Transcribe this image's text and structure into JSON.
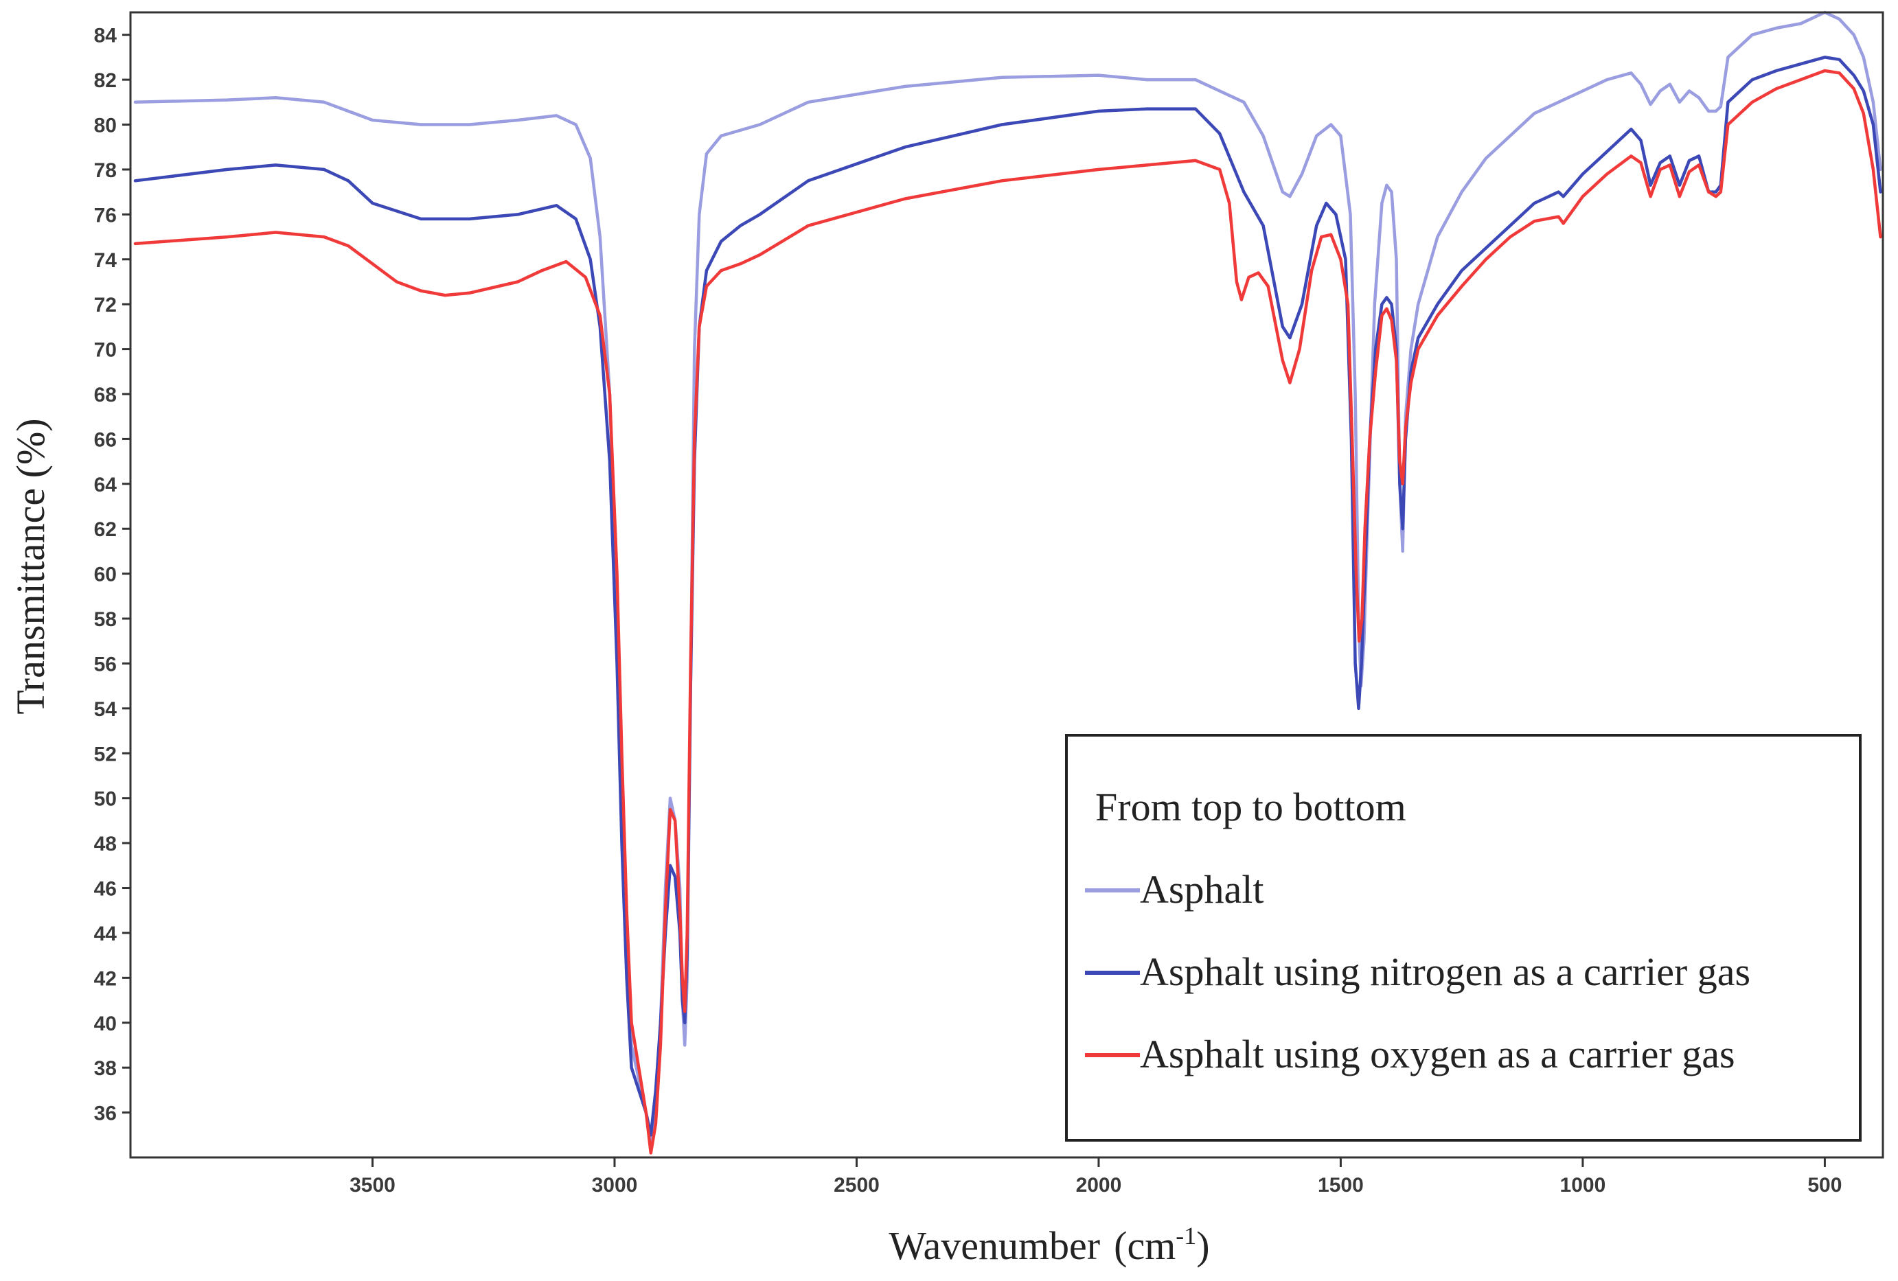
{
  "chart_data": {
    "type": "line",
    "xlabel_main": "Wavenumber",
    "xlabel_unit_open": "(cm",
    "xlabel_unit_sup": "-1",
    "xlabel_unit_close": ")",
    "ylabel": "Transmittance  (%)",
    "xlim": [
      4000,
      380
    ],
    "ylim": [
      34,
      85
    ],
    "x_ticks": [
      3500,
      3000,
      2500,
      2000,
      1500,
      1000,
      500
    ],
    "y_ticks": [
      36,
      38,
      40,
      42,
      44,
      46,
      48,
      50,
      52,
      54,
      56,
      58,
      60,
      62,
      64,
      66,
      68,
      70,
      72,
      74,
      76,
      78,
      80,
      82,
      84
    ],
    "legend": {
      "title": "From top to bottom",
      "position": "bottom-right",
      "entries": [
        "Asphalt",
        "Asphalt using nitrogen as a carrier gas",
        "Asphalt using oxygen as a carrier gas"
      ]
    },
    "series": [
      {
        "name": "Asphalt",
        "color": "#9a9de0",
        "points": [
          [
            3990,
            81
          ],
          [
            3800,
            81.1
          ],
          [
            3700,
            81.2
          ],
          [
            3600,
            81
          ],
          [
            3500,
            80.2
          ],
          [
            3400,
            80
          ],
          [
            3300,
            80
          ],
          [
            3200,
            80.2
          ],
          [
            3120,
            80.4
          ],
          [
            3080,
            80
          ],
          [
            3050,
            78.5
          ],
          [
            3030,
            75
          ],
          [
            3010,
            68
          ],
          [
            2995,
            58
          ],
          [
            2985,
            50
          ],
          [
            2975,
            43
          ],
          [
            2965,
            39
          ],
          [
            2950,
            37.5
          ],
          [
            2935,
            36
          ],
          [
            2925,
            34.5
          ],
          [
            2915,
            36.5
          ],
          [
            2905,
            40
          ],
          [
            2895,
            46
          ],
          [
            2885,
            50
          ],
          [
            2875,
            49
          ],
          [
            2865,
            46
          ],
          [
            2860,
            41
          ],
          [
            2855,
            39
          ],
          [
            2850,
            42
          ],
          [
            2843,
            55
          ],
          [
            2835,
            70
          ],
          [
            2825,
            76
          ],
          [
            2810,
            78.7
          ],
          [
            2780,
            79.5
          ],
          [
            2700,
            80
          ],
          [
            2600,
            81
          ],
          [
            2400,
            81.7
          ],
          [
            2200,
            82.1
          ],
          [
            2000,
            82.2
          ],
          [
            1900,
            82
          ],
          [
            1800,
            82
          ],
          [
            1750,
            81.5
          ],
          [
            1700,
            81
          ],
          [
            1660,
            79.5
          ],
          [
            1620,
            77
          ],
          [
            1605,
            76.8
          ],
          [
            1580,
            77.8
          ],
          [
            1550,
            79.5
          ],
          [
            1520,
            80
          ],
          [
            1500,
            79.5
          ],
          [
            1480,
            76
          ],
          [
            1470,
            68
          ],
          [
            1463,
            58
          ],
          [
            1458,
            55
          ],
          [
            1452,
            57
          ],
          [
            1445,
            62
          ],
          [
            1430,
            72
          ],
          [
            1415,
            76.5
          ],
          [
            1405,
            77.3
          ],
          [
            1395,
            77
          ],
          [
            1385,
            74
          ],
          [
            1378,
            64
          ],
          [
            1372,
            61
          ],
          [
            1366,
            67
          ],
          [
            1355,
            70
          ],
          [
            1340,
            72
          ],
          [
            1300,
            75
          ],
          [
            1250,
            77
          ],
          [
            1200,
            78.5
          ],
          [
            1150,
            79.5
          ],
          [
            1100,
            80.5
          ],
          [
            1050,
            81
          ],
          [
            1000,
            81.5
          ],
          [
            950,
            82
          ],
          [
            900,
            82.3
          ],
          [
            880,
            81.8
          ],
          [
            860,
            80.9
          ],
          [
            840,
            81.5
          ],
          [
            820,
            81.8
          ],
          [
            800,
            81
          ],
          [
            780,
            81.5
          ],
          [
            760,
            81.2
          ],
          [
            740,
            80.6
          ],
          [
            725,
            80.6
          ],
          [
            715,
            80.8
          ],
          [
            700,
            83
          ],
          [
            650,
            84
          ],
          [
            600,
            84.3
          ],
          [
            550,
            84.5
          ],
          [
            500,
            85
          ],
          [
            470,
            84.7
          ],
          [
            440,
            84
          ],
          [
            420,
            83
          ],
          [
            400,
            81
          ],
          [
            385,
            78
          ]
        ]
      },
      {
        "name": "Asphalt using nitrogen as a carrier gas",
        "color": "#3b48b6",
        "points": [
          [
            3990,
            77.5
          ],
          [
            3800,
            78
          ],
          [
            3700,
            78.2
          ],
          [
            3600,
            78
          ],
          [
            3550,
            77.5
          ],
          [
            3500,
            76.5
          ],
          [
            3400,
            75.8
          ],
          [
            3300,
            75.8
          ],
          [
            3200,
            76
          ],
          [
            3120,
            76.4
          ],
          [
            3080,
            75.8
          ],
          [
            3050,
            74
          ],
          [
            3030,
            71
          ],
          [
            3010,
            65
          ],
          [
            2995,
            56
          ],
          [
            2985,
            48
          ],
          [
            2975,
            42
          ],
          [
            2965,
            38
          ],
          [
            2950,
            37
          ],
          [
            2935,
            36
          ],
          [
            2925,
            35
          ],
          [
            2915,
            37
          ],
          [
            2905,
            40
          ],
          [
            2895,
            44
          ],
          [
            2885,
            47
          ],
          [
            2875,
            46.5
          ],
          [
            2865,
            44
          ],
          [
            2860,
            41
          ],
          [
            2855,
            40
          ],
          [
            2850,
            43
          ],
          [
            2843,
            55
          ],
          [
            2835,
            65
          ],
          [
            2825,
            71
          ],
          [
            2810,
            73.5
          ],
          [
            2780,
            74.8
          ],
          [
            2740,
            75.5
          ],
          [
            2700,
            76
          ],
          [
            2600,
            77.5
          ],
          [
            2400,
            79
          ],
          [
            2200,
            80
          ],
          [
            2000,
            80.6
          ],
          [
            1900,
            80.7
          ],
          [
            1800,
            80.7
          ],
          [
            1750,
            79.6
          ],
          [
            1700,
            77
          ],
          [
            1660,
            75.5
          ],
          [
            1620,
            71
          ],
          [
            1605,
            70.5
          ],
          [
            1580,
            72
          ],
          [
            1550,
            75.5
          ],
          [
            1530,
            76.5
          ],
          [
            1510,
            76
          ],
          [
            1490,
            74
          ],
          [
            1478,
            66
          ],
          [
            1470,
            56
          ],
          [
            1463,
            54
          ],
          [
            1457,
            56
          ],
          [
            1450,
            60
          ],
          [
            1440,
            66
          ],
          [
            1428,
            70
          ],
          [
            1415,
            72
          ],
          [
            1405,
            72.3
          ],
          [
            1395,
            72
          ],
          [
            1385,
            70
          ],
          [
            1378,
            64
          ],
          [
            1372,
            62
          ],
          [
            1366,
            66
          ],
          [
            1355,
            69
          ],
          [
            1340,
            70.5
          ],
          [
            1300,
            72
          ],
          [
            1250,
            73.5
          ],
          [
            1200,
            74.5
          ],
          [
            1150,
            75.5
          ],
          [
            1100,
            76.5
          ],
          [
            1050,
            77
          ],
          [
            1040,
            76.8
          ],
          [
            1000,
            77.8
          ],
          [
            950,
            78.8
          ],
          [
            900,
            79.8
          ],
          [
            880,
            79.3
          ],
          [
            860,
            77.3
          ],
          [
            840,
            78.3
          ],
          [
            820,
            78.6
          ],
          [
            800,
            77.3
          ],
          [
            780,
            78.4
          ],
          [
            760,
            78.6
          ],
          [
            740,
            77
          ],
          [
            725,
            77
          ],
          [
            715,
            77.3
          ],
          [
            700,
            81
          ],
          [
            650,
            82
          ],
          [
            600,
            82.4
          ],
          [
            550,
            82.7
          ],
          [
            500,
            83
          ],
          [
            470,
            82.9
          ],
          [
            440,
            82.2
          ],
          [
            420,
            81.5
          ],
          [
            400,
            80
          ],
          [
            385,
            77
          ]
        ]
      },
      {
        "name": "Asphalt using oxygen as a carrier gas",
        "color": "#f03a3a",
        "points": [
          [
            3990,
            74.7
          ],
          [
            3800,
            75
          ],
          [
            3700,
            75.2
          ],
          [
            3600,
            75
          ],
          [
            3550,
            74.6
          ],
          [
            3500,
            73.8
          ],
          [
            3450,
            73
          ],
          [
            3400,
            72.6
          ],
          [
            3350,
            72.4
          ],
          [
            3300,
            72.5
          ],
          [
            3200,
            73
          ],
          [
            3150,
            73.5
          ],
          [
            3100,
            73.9
          ],
          [
            3060,
            73.2
          ],
          [
            3030,
            71.5
          ],
          [
            3010,
            68
          ],
          [
            2995,
            60
          ],
          [
            2985,
            52
          ],
          [
            2975,
            45
          ],
          [
            2965,
            40
          ],
          [
            2950,
            38
          ],
          [
            2935,
            36
          ],
          [
            2925,
            34.2
          ],
          [
            2915,
            35.5
          ],
          [
            2905,
            39
          ],
          [
            2895,
            45
          ],
          [
            2885,
            49.5
          ],
          [
            2875,
            49
          ],
          [
            2865,
            45
          ],
          [
            2860,
            42
          ],
          [
            2855,
            40.5
          ],
          [
            2850,
            44
          ],
          [
            2843,
            56
          ],
          [
            2835,
            66
          ],
          [
            2825,
            71
          ],
          [
            2810,
            72.8
          ],
          [
            2780,
            73.5
          ],
          [
            2740,
            73.8
          ],
          [
            2700,
            74.2
          ],
          [
            2600,
            75.5
          ],
          [
            2400,
            76.7
          ],
          [
            2200,
            77.5
          ],
          [
            2000,
            78
          ],
          [
            1900,
            78.2
          ],
          [
            1800,
            78.4
          ],
          [
            1750,
            78
          ],
          [
            1730,
            76.5
          ],
          [
            1715,
            73
          ],
          [
            1705,
            72.2
          ],
          [
            1690,
            73.2
          ],
          [
            1670,
            73.4
          ],
          [
            1650,
            72.8
          ],
          [
            1620,
            69.5
          ],
          [
            1605,
            68.5
          ],
          [
            1585,
            70
          ],
          [
            1560,
            73.5
          ],
          [
            1540,
            75
          ],
          [
            1520,
            75.1
          ],
          [
            1500,
            74
          ],
          [
            1485,
            72
          ],
          [
            1475,
            65
          ],
          [
            1468,
            60
          ],
          [
            1462,
            57
          ],
          [
            1456,
            58
          ],
          [
            1450,
            62
          ],
          [
            1440,
            66
          ],
          [
            1428,
            69
          ],
          [
            1415,
            71.5
          ],
          [
            1405,
            71.8
          ],
          [
            1395,
            71.3
          ],
          [
            1385,
            69.5
          ],
          [
            1378,
            65
          ],
          [
            1372,
            64
          ],
          [
            1366,
            66.5
          ],
          [
            1355,
            68.5
          ],
          [
            1340,
            70
          ],
          [
            1300,
            71.5
          ],
          [
            1250,
            72.8
          ],
          [
            1200,
            74
          ],
          [
            1150,
            75
          ],
          [
            1100,
            75.7
          ],
          [
            1050,
            75.9
          ],
          [
            1040,
            75.6
          ],
          [
            1000,
            76.8
          ],
          [
            950,
            77.8
          ],
          [
            900,
            78.6
          ],
          [
            880,
            78.3
          ],
          [
            860,
            76.8
          ],
          [
            840,
            78
          ],
          [
            820,
            78.2
          ],
          [
            800,
            76.8
          ],
          [
            780,
            77.9
          ],
          [
            760,
            78.2
          ],
          [
            740,
            77
          ],
          [
            725,
            76.8
          ],
          [
            715,
            77
          ],
          [
            700,
            80
          ],
          [
            650,
            81
          ],
          [
            600,
            81.6
          ],
          [
            550,
            82
          ],
          [
            500,
            82.4
          ],
          [
            470,
            82.3
          ],
          [
            440,
            81.6
          ],
          [
            420,
            80.5
          ],
          [
            400,
            78
          ],
          [
            385,
            75
          ]
        ]
      }
    ]
  }
}
